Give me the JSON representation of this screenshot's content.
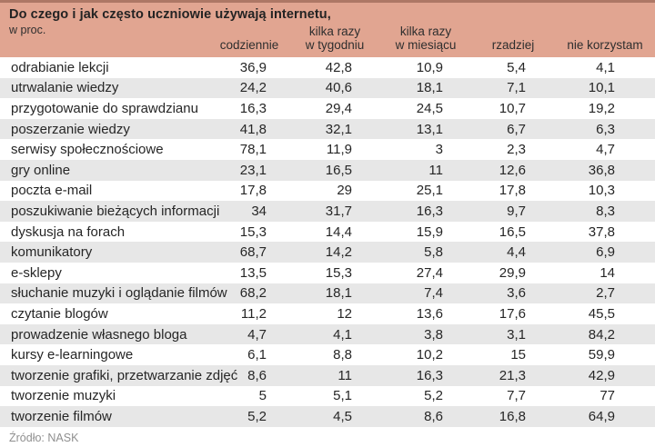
{
  "chart_data": {
    "type": "table",
    "title": "Do czego i jak często uczniowie używają internetu,",
    "subtitle": "w proc.",
    "columns": [
      "codziennie",
      "kilka razy\nw tygodniu",
      "kilka razy\nw miesiącu",
      "rzadziej",
      "nie korzystam"
    ],
    "rows": [
      {
        "label": "odrabianie lekcji",
        "values": [
          "36,9",
          "42,8",
          "10,9",
          "5,4",
          "4,1"
        ]
      },
      {
        "label": "utrwalanie wiedzy",
        "values": [
          "24,2",
          "40,6",
          "18,1",
          "7,1",
          "10,1"
        ]
      },
      {
        "label": "przygotowanie do sprawdzianu",
        "values": [
          "16,3",
          "29,4",
          "24,5",
          "10,7",
          "19,2"
        ]
      },
      {
        "label": "poszerzanie wiedzy",
        "values": [
          "41,8",
          "32,1",
          "13,1",
          "6,7",
          "6,3"
        ]
      },
      {
        "label": "serwisy społecznościowe",
        "values": [
          "78,1",
          "11,9",
          "3",
          "2,3",
          "4,7"
        ]
      },
      {
        "label": "gry online",
        "values": [
          "23,1",
          "16,5",
          "11",
          "12,6",
          "36,8"
        ]
      },
      {
        "label": "poczta e-mail",
        "values": [
          "17,8",
          "29",
          "25,1",
          "17,8",
          "10,3"
        ]
      },
      {
        "label": "poszukiwanie bieżących informacji",
        "values": [
          "34",
          "31,7",
          "16,3",
          "9,7",
          "8,3"
        ]
      },
      {
        "label": "dyskusja na forach",
        "values": [
          "15,3",
          "14,4",
          "15,9",
          "16,5",
          "37,8"
        ]
      },
      {
        "label": "komunikatory",
        "values": [
          "68,7",
          "14,2",
          "5,8",
          "4,4",
          "6,9"
        ]
      },
      {
        "label": "e-sklepy",
        "values": [
          "13,5",
          "15,3",
          "27,4",
          "29,9",
          "14"
        ]
      },
      {
        "label": "słuchanie muzyki i oglądanie filmów",
        "values": [
          "68,2",
          "18,1",
          "7,4",
          "3,6",
          "2,7"
        ]
      },
      {
        "label": "czytanie blogów",
        "values": [
          "11,2",
          "12",
          "13,6",
          "17,6",
          "45,5"
        ]
      },
      {
        "label": "prowadzenie własnego bloga",
        "values": [
          "4,7",
          "4,1",
          "3,8",
          "3,1",
          "84,2"
        ]
      },
      {
        "label": "kursy e-learningowe",
        "values": [
          "6,1",
          "8,8",
          "10,2",
          "15",
          "59,9"
        ]
      },
      {
        "label": "tworzenie grafiki, przetwarzanie zdjęć",
        "values": [
          "8,6",
          "11",
          "16,3",
          "21,3",
          "42,9"
        ]
      },
      {
        "label": "tworzenie muzyki",
        "values": [
          "5",
          "5,1",
          "5,2",
          "7,7",
          "77"
        ]
      },
      {
        "label": "tworzenie filmów",
        "values": [
          "5,2",
          "4,5",
          "8,6",
          "16,8",
          "64,9"
        ]
      }
    ],
    "source": "Źródło: NASK",
    "colors": {
      "header_bg": "#e1a591",
      "top_border": "#ad7765",
      "row_alt_bg": "#e7e7e7",
      "text": "#262626",
      "source_text": "#8f8f8f"
    },
    "layout": "alternating row stripes (white/gray), numeric columns right-aligned, headers bottom-aligned on salmon band"
  }
}
